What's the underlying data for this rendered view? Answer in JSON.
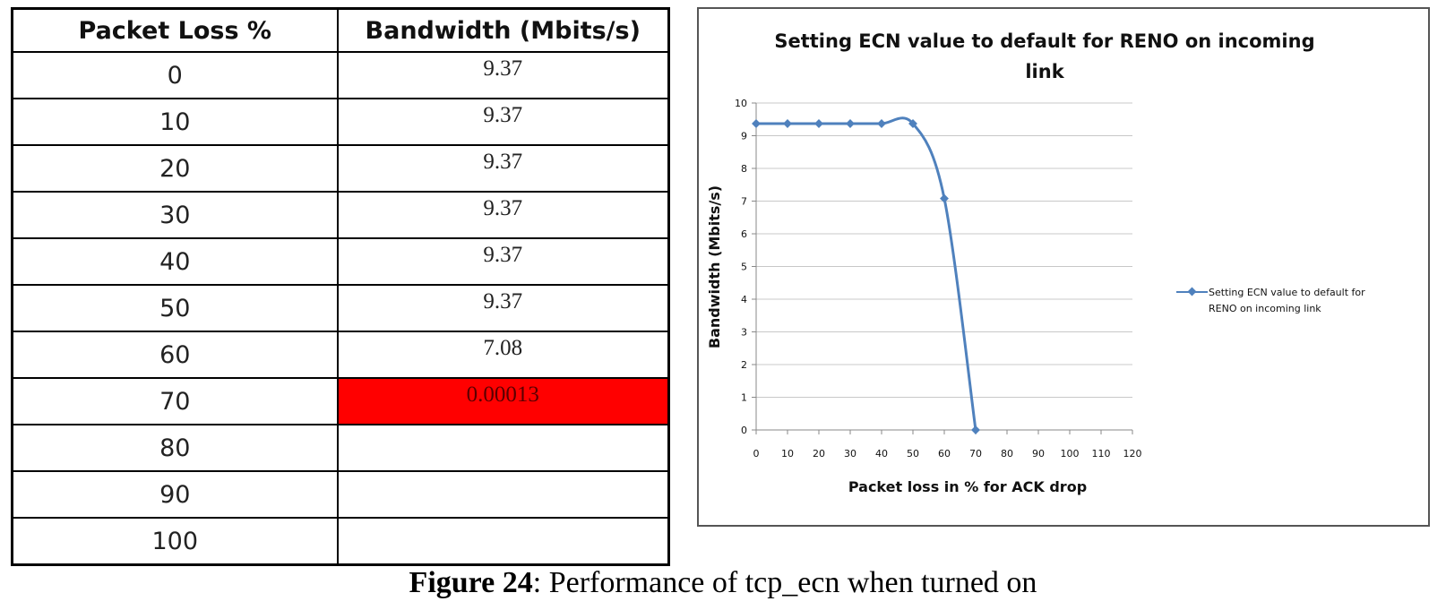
{
  "table": {
    "headers": [
      "Packet Loss %",
      "Bandwidth (Mbits/s)"
    ],
    "rows": [
      {
        "loss": "0",
        "bandwidth": "9.37"
      },
      {
        "loss": "10",
        "bandwidth": "9.37"
      },
      {
        "loss": "20",
        "bandwidth": "9.37"
      },
      {
        "loss": "30",
        "bandwidth": "9.37"
      },
      {
        "loss": "40",
        "bandwidth": "9.37"
      },
      {
        "loss": "50",
        "bandwidth": "9.37"
      },
      {
        "loss": "60",
        "bandwidth": "7.08"
      },
      {
        "loss": "70",
        "bandwidth": "0.00013",
        "highlight": true
      },
      {
        "loss": "80",
        "bandwidth": ""
      },
      {
        "loss": "90",
        "bandwidth": ""
      },
      {
        "loss": "100",
        "bandwidth": ""
      }
    ],
    "highlight_color": "#ff0000"
  },
  "chart_data": {
    "type": "line",
    "title_lines": [
      "Setting  ECN value to default for RENO on incoming",
      "link"
    ],
    "xlabel": "Packet loss in % for ACK drop",
    "ylabel": "Bandwidth (Mbits/s)",
    "xlim": [
      0,
      120
    ],
    "ylim": [
      0,
      10
    ],
    "xticks": [
      0,
      10,
      20,
      30,
      40,
      50,
      60,
      70,
      80,
      90,
      100,
      110,
      120
    ],
    "yticks": [
      0,
      1,
      2,
      3,
      4,
      5,
      6,
      7,
      8,
      9,
      10
    ],
    "grid": "horizontal",
    "legend_position": "right",
    "series": [
      {
        "name_lines": [
          "Setting  ECN value to default for",
          "RENO on incoming link"
        ],
        "x": [
          0,
          10,
          20,
          30,
          40,
          50,
          60,
          70
        ],
        "y": [
          9.37,
          9.37,
          9.37,
          9.37,
          9.37,
          9.37,
          7.08,
          0.00013
        ],
        "color": "#4f81bd",
        "marker": "diamond",
        "smooth": true
      }
    ]
  },
  "caption": {
    "label": "Figure  24",
    "text": ": Performance  of tcp_ecn when turned  on"
  }
}
